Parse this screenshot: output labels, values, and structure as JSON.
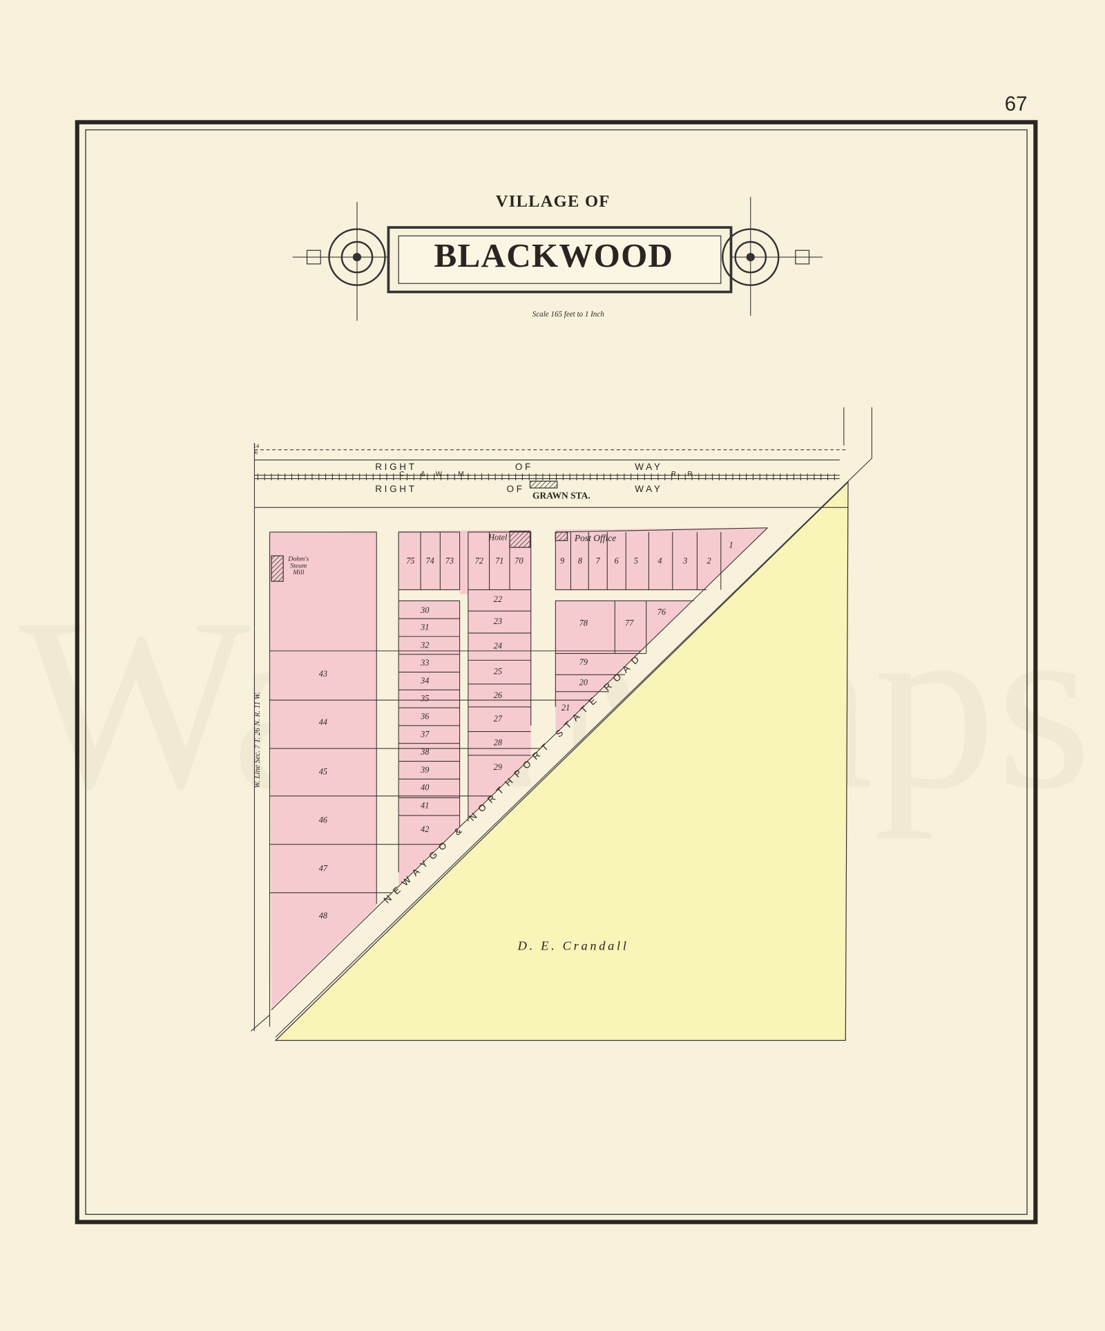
{
  "page_number": "67",
  "watermark": "WardMaps",
  "title": {
    "prefix": "VILLAGE OF",
    "name": "BLACKWOOD",
    "scale": "Scale 165 feet to 1 Inch"
  },
  "map": {
    "corner_mark": [
      "14",
      "6"
    ],
    "right_of_way_north": [
      "RIGHT",
      "OF",
      "WAY"
    ],
    "railroad": [
      "C. & W. M.",
      "R. R."
    ],
    "right_of_way_south": [
      "RIGHT",
      "OF",
      "WAY"
    ],
    "station": "GRAWN STA.",
    "hotel": "Hotel",
    "post_office": "Post Office",
    "mill": [
      "Dohm's",
      "Steam",
      "Mill"
    ],
    "section_line": "W. Line Sec. 7  T. 26 N.  R. 11 W.",
    "road": "NEWAYGO & NORTHPORT STATE ROAD",
    "owner": "D. E. Crandall",
    "lots": [
      "43",
      "44",
      "45",
      "46",
      "47",
      "48",
      "75",
      "74",
      "73",
      "30",
      "31",
      "32",
      "33",
      "34",
      "35",
      "36",
      "37",
      "38",
      "39",
      "40",
      "41",
      "42",
      "72",
      "71",
      "70",
      "22",
      "23",
      "24",
      "25",
      "26",
      "27",
      "28",
      "29",
      "9",
      "8",
      "7",
      "6",
      "5",
      "4",
      "3",
      "2",
      "1",
      "78",
      "77",
      "76",
      "79",
      "20",
      "21"
    ]
  }
}
